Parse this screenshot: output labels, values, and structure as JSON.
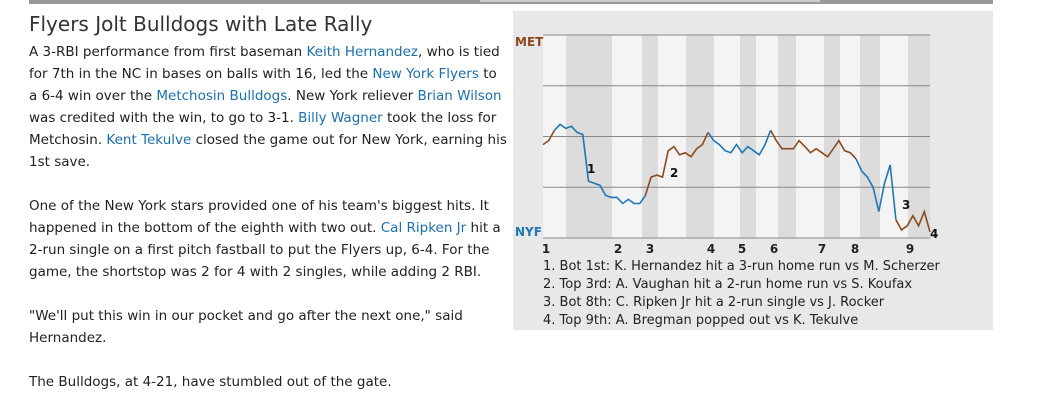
{
  "article": {
    "title": "Flyers Jolt Bulldogs with Late Rally",
    "paragraphs": [
      [
        {
          "text": "A 3-RBI performance from first baseman "
        },
        {
          "text": "Keith Hernandez",
          "link": true
        },
        {
          "text": ", who is tied for 7th in the NC in bases on balls with 16, led the "
        },
        {
          "text": "New York Flyers",
          "link": true
        },
        {
          "text": " to a 6-4 win over the "
        },
        {
          "text": "Metchosin Bulldogs",
          "link": true
        },
        {
          "text": ". New York reliever "
        },
        {
          "text": "Brian Wilson",
          "link": true
        },
        {
          "text": " was credited with the win, to go to 3-1. "
        },
        {
          "text": "Billy Wagner",
          "link": true
        },
        {
          "text": " took the loss for Metchosin. "
        },
        {
          "text": "Kent Tekulve",
          "link": true
        },
        {
          "text": " closed the game out for New York, earning his 1st save."
        }
      ],
      [
        {
          "text": "One of the New York stars provided one of his team's biggest hits. It happened in the bottom of the eighth with two out. "
        },
        {
          "text": "Cal Ripken Jr",
          "link": true
        },
        {
          "text": " hit a 2-run single on a first pitch fastball to put the Flyers up, 6-4. For the game, the shortstop was 2 for 4 with 2 singles, while adding 2 RBI."
        }
      ],
      [
        {
          "text": "\"We'll put this win in our pocket and go after the next one,\" said Hernandez."
        }
      ],
      [
        {
          "text": "The Bulldogs, at 4-21, have stumbled out of the gate."
        }
      ]
    ]
  },
  "chart_data": {
    "type": "line",
    "top_label": "MET",
    "bottom_label": "NYF",
    "ylim": [
      0,
      100
    ],
    "gridlines": [
      25,
      50,
      75
    ],
    "innings": [
      "1",
      "2",
      "3",
      "4",
      "5",
      "6",
      "7",
      "8",
      "9"
    ],
    "markers": [
      "1",
      "2",
      "3",
      "4"
    ],
    "notes": [
      "1. Bot 1st: K. Hernandez hit a 3-run home run vs M. Scherzer",
      "2. Top 3rd: A. Vaughan hit a 2-run home run vs S. Koufax",
      "3. Bot 8th: C. Ripken Jr hit a 2-run single vs J. Rocker",
      "4. Top 9th: A. Bregman popped out vs K. Tekulve"
    ],
    "series": [
      {
        "color": "#8b4a1c",
        "values": [
          46,
          48,
          53,
          null,
          null,
          null,
          null,
          null,
          null,
          null,
          null,
          null,
          null,
          null,
          null,
          null,
          null,
          null,
          21,
          30,
          31,
          30,
          43,
          45,
          41,
          42,
          40,
          44,
          46,
          52,
          null,
          null,
          null,
          null,
          null,
          null,
          null,
          null,
          null,
          null,
          53,
          48,
          44,
          44,
          44,
          48,
          45,
          42,
          44,
          42,
          40,
          44,
          48,
          43,
          42,
          39,
          null,
          null,
          null,
          null,
          null,
          null,
          9,
          4,
          6,
          11,
          6,
          13,
          3
        ]
      },
      {
        "color": "#1f78b4",
        "values": [
          null,
          null,
          53,
          56,
          54,
          55,
          52,
          51,
          28,
          27,
          26,
          21,
          20,
          20,
          17,
          19,
          17,
          17,
          21,
          null,
          null,
          null,
          null,
          null,
          null,
          null,
          null,
          null,
          null,
          52,
          48,
          46,
          43,
          42,
          46,
          42,
          45,
          43,
          41,
          46,
          53,
          null,
          null,
          null,
          null,
          null,
          null,
          null,
          null,
          null,
          null,
          null,
          null,
          null,
          null,
          39,
          33,
          30,
          25,
          13,
          27,
          36,
          9,
          null,
          null,
          null,
          null,
          null,
          null
        ]
      }
    ]
  }
}
